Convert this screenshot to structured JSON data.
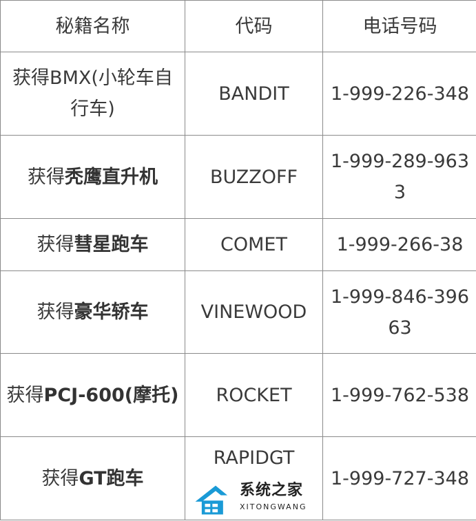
{
  "headers": [
    "秘籍名称",
    "代码",
    "电话号码"
  ],
  "rows": [
    {
      "prefix": "获得BMX(小轮车自行车)",
      "bold": "",
      "code": "BANDIT",
      "phone": "1-999-226-348"
    },
    {
      "prefix": "获得",
      "bold": "秃鹰直升机",
      "code": "BUZZOFF",
      "phone": "1-999-289-9633"
    },
    {
      "prefix": "获得",
      "bold": "彗星跑车",
      "code": "COMET",
      "phone": "1-999-266-38"
    },
    {
      "prefix": "获得",
      "bold": "豪华轿车",
      "code": "VINEWOOD",
      "phone": "1-999-846-39663"
    },
    {
      "prefix": "获得",
      "bold": "PCJ-600(摩托)",
      "code": "ROCKET",
      "phone": "1-999-762-538"
    },
    {
      "prefix": "获得",
      "bold": "GT跑车",
      "code": "RAPIDGT",
      "phone": "1-999-727-348"
    }
  ],
  "watermark": {
    "text": "系统之家",
    "sub": "XITONGWANG",
    "color": "#1a9ad6"
  }
}
